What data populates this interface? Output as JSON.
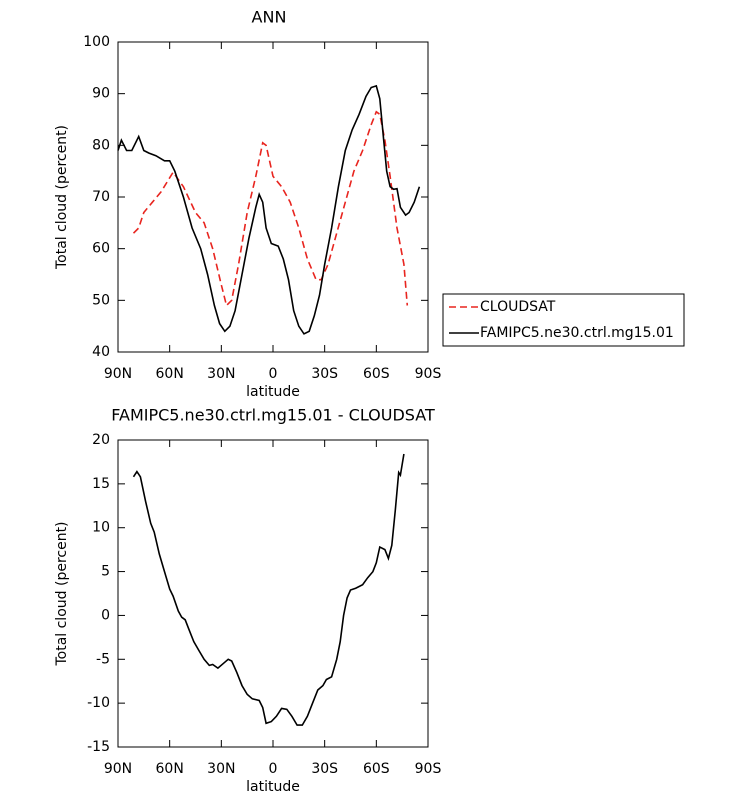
{
  "chart_data": [
    {
      "type": "line",
      "title": "ANN",
      "xlabel": "latitude",
      "ylabel": "Total cloud (percent)",
      "xlim": [
        90,
        -90
      ],
      "xticks": [
        {
          "value": 90,
          "label": "90N"
        },
        {
          "value": 60,
          "label": "60N"
        },
        {
          "value": 30,
          "label": "30N"
        },
        0,
        {
          "value": -30,
          "label": "30S"
        },
        {
          "value": -60,
          "label": "60S"
        },
        {
          "value": -90,
          "label": "90S"
        }
      ],
      "ylim": [
        40,
        100
      ],
      "yticks": [
        40,
        50,
        60,
        70,
        80,
        90,
        100
      ],
      "legend": "right",
      "series": [
        {
          "name": "CLOUDSAT",
          "color": "#e8251f",
          "linestyle": "dashed",
          "x": [
            81,
            78,
            75,
            70,
            65,
            58,
            52,
            45,
            40,
            35,
            30,
            27,
            24,
            20,
            15,
            10,
            6,
            4,
            0,
            -5,
            -10,
            -15,
            -20,
            -25,
            -28,
            -32,
            -37,
            -42,
            -47,
            -52,
            -57,
            -60,
            -62,
            -65,
            -68,
            -72,
            -76,
            -78
          ],
          "values": [
            63,
            64,
            67,
            69,
            71,
            74.8,
            72,
            67,
            65,
            60,
            53,
            49,
            50,
            57,
            67,
            74,
            80.5,
            80,
            74,
            72,
            69,
            64,
            58,
            54,
            54,
            57,
            63,
            69,
            75,
            79,
            84,
            86.5,
            86,
            81,
            74,
            64,
            57,
            49
          ]
        },
        {
          "name": "FAMIPC5.ne30.ctrl.mg15.01",
          "color": "#000000",
          "linestyle": "solid",
          "x": [
            90,
            88,
            85,
            82,
            78,
            75,
            72,
            68,
            63,
            60,
            57,
            52,
            47,
            42,
            38,
            34,
            31,
            28,
            25,
            22,
            18,
            14,
            10,
            8,
            6,
            4,
            1,
            -3,
            -6,
            -9,
            -12,
            -15,
            -18,
            -21,
            -24,
            -27,
            -30,
            -34,
            -38,
            -42,
            -46,
            -50,
            -54,
            -57,
            -60,
            -62,
            -64,
            -66,
            -68,
            -70,
            -72,
            -74,
            -77,
            -79,
            -82,
            -85
          ],
          "values": [
            79,
            81,
            79,
            79,
            81.7,
            79,
            78.5,
            78,
            77,
            77,
            75,
            70,
            64,
            60,
            55,
            49,
            45.5,
            44,
            45,
            48,
            55,
            62,
            68,
            70.5,
            69,
            64,
            61,
            60.5,
            58,
            54,
            48,
            45,
            43.5,
            44,
            47,
            51,
            57,
            64,
            72,
            79,
            83,
            86,
            89.5,
            91.2,
            91.5,
            89,
            82,
            75,
            72,
            71.5,
            71.6,
            68,
            66.5,
            67,
            69,
            72
          ]
        }
      ]
    },
    {
      "type": "line",
      "title": "FAMIPC5.ne30.ctrl.mg15.01 - CLOUDSAT",
      "xlabel": "latitude",
      "ylabel": "Total cloud (percent)",
      "xlim": [
        90,
        -90
      ],
      "xticks": [
        {
          "value": 90,
          "label": "90N"
        },
        {
          "value": 60,
          "label": "60N"
        },
        {
          "value": 30,
          "label": "30N"
        },
        0,
        {
          "value": -30,
          "label": "30S"
        },
        {
          "value": -60,
          "label": "60S"
        },
        {
          "value": -90,
          "label": "90S"
        }
      ],
      "ylim": [
        -15,
        20
      ],
      "yticks": [
        -15,
        -10,
        -5,
        0,
        5,
        10,
        15,
        20
      ],
      "color": "#000000",
      "x": [
        81,
        79,
        77,
        74,
        71,
        69,
        66,
        63,
        60,
        58,
        55,
        53,
        51,
        49,
        46,
        43,
        40,
        37,
        35,
        32,
        29,
        26,
        24,
        21,
        18,
        15,
        12,
        8,
        6,
        4,
        1,
        -2,
        -5,
        -8,
        -11,
        -14,
        -17,
        -20,
        -23,
        -26,
        -29,
        -31,
        -34,
        -37,
        -39,
        -41,
        -43,
        -45,
        -48,
        -52,
        -55,
        -58,
        -60,
        -62,
        -65,
        -67,
        -69,
        -71,
        -73,
        -74,
        -76
      ],
      "values": [
        15.8,
        16.4,
        15.8,
        13,
        10.5,
        9.5,
        7,
        5,
        3,
        2.2,
        0.5,
        -0.2,
        -0.5,
        -1.5,
        -3,
        -4,
        -5,
        -5.7,
        -5.6,
        -6,
        -5.5,
        -5,
        -5.2,
        -6.5,
        -8,
        -9,
        -9.5,
        -9.7,
        -10.5,
        -12.3,
        -12.1,
        -11.5,
        -10.6,
        -10.7,
        -11.5,
        -12.5,
        -12.5,
        -11.5,
        -10,
        -8.5,
        -8,
        -7.3,
        -7,
        -5,
        -3,
        0,
        2,
        2.9,
        3.1,
        3.5,
        4.3,
        5,
        6,
        7.8,
        7.5,
        6.5,
        8,
        12,
        16.3,
        16,
        18.4
      ]
    }
  ]
}
